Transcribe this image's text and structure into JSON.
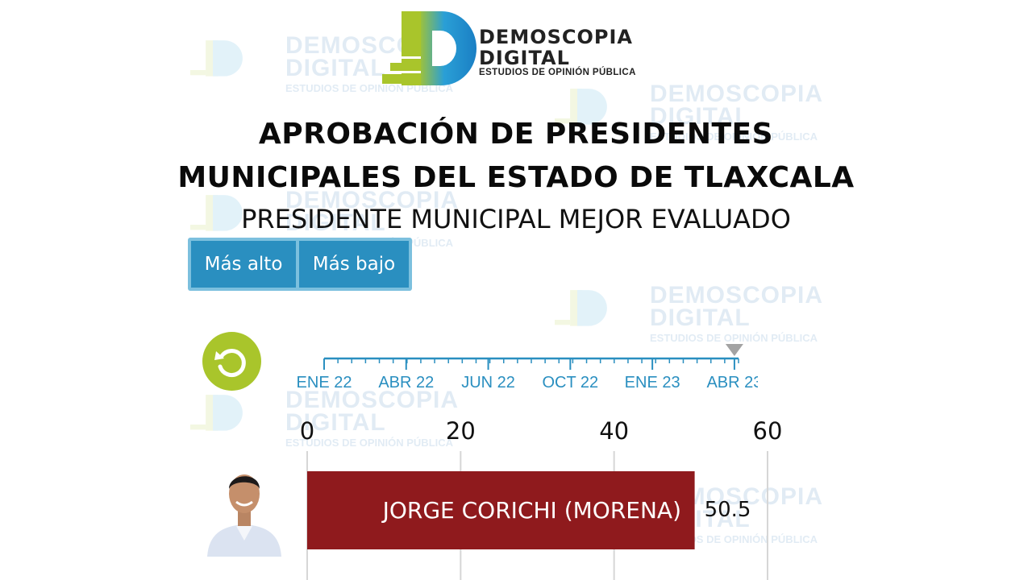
{
  "logo": {
    "line1": "DEMOSCOPIA",
    "line2": "DIGITAL",
    "line3": "ESTUDIOS DE OPINIÓN PÚBLICA",
    "colors": {
      "lime": "#a9c52b",
      "blue": "#2a9fd6"
    }
  },
  "header": {
    "title_line1": "APROBACIÓN DE PRESIDENTES",
    "title_line2": "MUNICIPALES DEL ESTADO DE TLAXCALA",
    "subtitle": "PRESIDENTE MUNICIPAL MEJOR EVALUADO"
  },
  "toggle": {
    "high_label": "Más alto",
    "low_label": "Más bajo"
  },
  "timeline": {
    "labels": [
      "ENE 22",
      "ABR 22",
      "JUN 22",
      "OCT 22",
      "ENE 23",
      "ABR 23"
    ],
    "current": "ABR 23",
    "color": "#2a8fc0"
  },
  "chart_data": {
    "type": "bar",
    "orientation": "horizontal",
    "categories": [
      "JORGE CORICHI (MORENA)"
    ],
    "values": [
      50.5
    ],
    "xlim": [
      0,
      60
    ],
    "xticks": [
      0,
      20,
      40,
      60
    ],
    "grid": true,
    "bar_color": "#8f1a1d"
  }
}
